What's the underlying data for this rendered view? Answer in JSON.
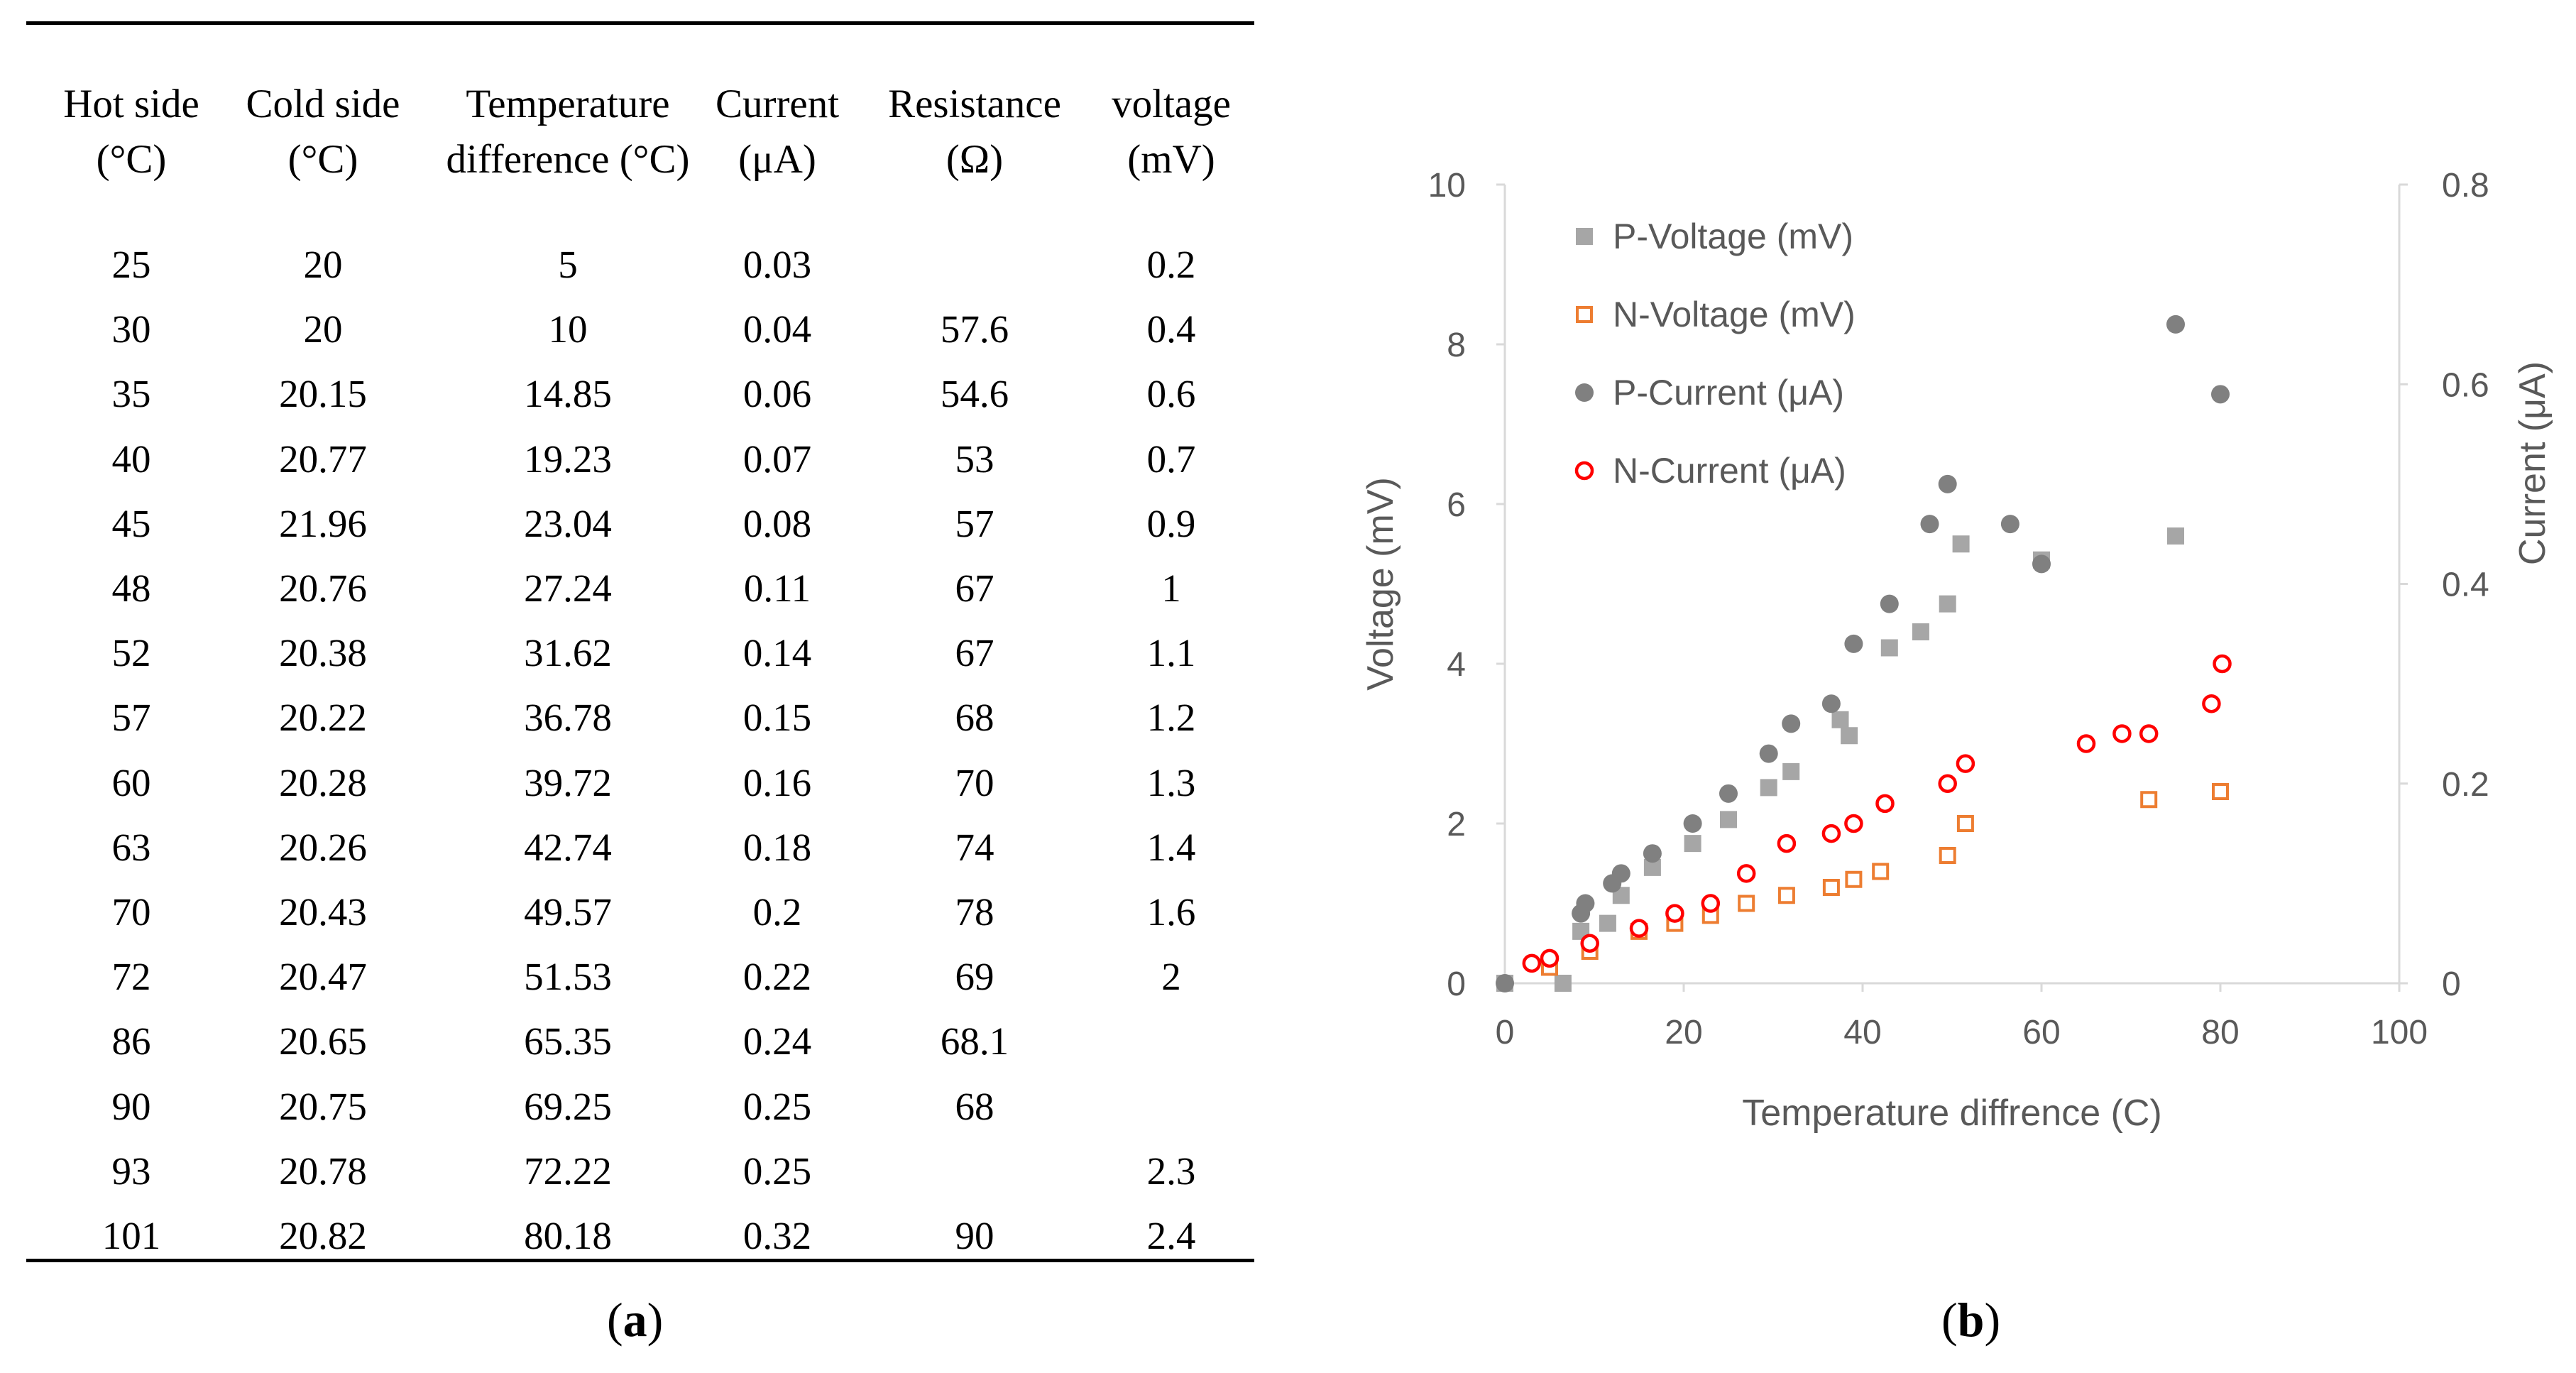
{
  "table": {
    "headers": [
      [
        "Hot side",
        "(°C)"
      ],
      [
        "Cold side",
        "(°C)"
      ],
      [
        "Temperature",
        "difference (°C)"
      ],
      [
        "Current",
        "(μA)"
      ],
      [
        "Resistance",
        "(Ω)"
      ],
      [
        "voltage",
        "(mV)"
      ]
    ],
    "rows": [
      [
        "25",
        "20",
        "5",
        "0.03",
        "",
        "0.2"
      ],
      [
        "30",
        "20",
        "10",
        "0.04",
        "57.6",
        "0.4"
      ],
      [
        "35",
        "20.15",
        "14.85",
        "0.06",
        "54.6",
        "0.6"
      ],
      [
        "40",
        "20.77",
        "19.23",
        "0.07",
        "53",
        "0.7"
      ],
      [
        "45",
        "21.96",
        "23.04",
        "0.08",
        "57",
        "0.9"
      ],
      [
        "48",
        "20.76",
        "27.24",
        "0.11",
        "67",
        "1"
      ],
      [
        "52",
        "20.38",
        "31.62",
        "0.14",
        "67",
        "1.1"
      ],
      [
        "57",
        "20.22",
        "36.78",
        "0.15",
        "68",
        "1.2"
      ],
      [
        "60",
        "20.28",
        "39.72",
        "0.16",
        "70",
        "1.3"
      ],
      [
        "63",
        "20.26",
        "42.74",
        "0.18",
        "74",
        "1.4"
      ],
      [
        "70",
        "20.43",
        "49.57",
        "0.2",
        "78",
        "1.6"
      ],
      [
        "72",
        "20.47",
        "51.53",
        "0.22",
        "69",
        "2"
      ],
      [
        "86",
        "20.65",
        "65.35",
        "0.24",
        "68.1",
        ""
      ],
      [
        "90",
        "20.75",
        "69.25",
        "0.25",
        "68",
        ""
      ],
      [
        "93",
        "20.78",
        "72.22",
        "0.25",
        "",
        "2.3"
      ],
      [
        "101",
        "20.82",
        "80.18",
        "0.32",
        "90",
        "2.4"
      ]
    ]
  },
  "labels": {
    "a": {
      "open": "(",
      "letter": "a",
      "close": ")"
    },
    "b": {
      "open": "(",
      "letter": "b",
      "close": ")"
    }
  },
  "chart_data": {
    "type": "scatter",
    "title": "",
    "xlabel": "Temperature diffrence (C)",
    "ylabel": "Voltage (mV)",
    "y2label": "Current (μA)",
    "xlim": [
      0,
      100
    ],
    "ylim": [
      0,
      10
    ],
    "y2lim": [
      0,
      0.8
    ],
    "xticks": [
      "0",
      "20",
      "40",
      "60",
      "80",
      "100"
    ],
    "yticks": [
      "0",
      "2",
      "4",
      "6",
      "8",
      "10"
    ],
    "y2ticks": [
      "0",
      "0.2",
      "0.4",
      "0.6",
      "0.8"
    ],
    "grid": false,
    "legend_position": "top-left",
    "series": [
      {
        "name": "P-Voltage (mV)",
        "axis": "left",
        "marker": "filled-square",
        "color": "#a6a6a6",
        "x": [
          0,
          6.5,
          8.5,
          11.5,
          13,
          16.5,
          21,
          25,
          29.5,
          32,
          37.5,
          38.5,
          43,
          46.5,
          49.5,
          51,
          60,
          75
        ],
        "y": [
          0,
          0,
          0.65,
          0.75,
          1.1,
          1.45,
          1.75,
          2.05,
          2.45,
          2.65,
          3.3,
          3.1,
          4.2,
          4.4,
          4.75,
          5.5,
          5.3,
          5.6
        ]
      },
      {
        "name": "N-Voltage (mV)",
        "axis": "left",
        "marker": "open-square",
        "color": "#ed7d31",
        "x": [
          5,
          9.5,
          15,
          19,
          23,
          27,
          31.5,
          36.5,
          39,
          42,
          49.5,
          51.5,
          72,
          80
        ],
        "y": [
          0.2,
          0.4,
          0.65,
          0.75,
          0.85,
          1.0,
          1.1,
          1.2,
          1.3,
          1.4,
          1.6,
          2.0,
          2.3,
          2.4
        ]
      },
      {
        "name": "P-Current (μA)",
        "axis": "right",
        "marker": "filled-circle",
        "color": "#808080",
        "x": [
          0,
          8.5,
          9,
          12,
          13,
          16.5,
          21,
          25,
          29.5,
          32,
          36.5,
          39,
          43,
          47.5,
          49.5,
          56.5,
          60,
          75,
          80
        ],
        "y": [
          0,
          0.07,
          0.08,
          0.1,
          0.11,
          0.13,
          0.16,
          0.19,
          0.23,
          0.26,
          0.28,
          0.34,
          0.38,
          0.46,
          0.5,
          0.46,
          0.42,
          0.66,
          0.59
        ]
      },
      {
        "name": "N-Current (μA)",
        "axis": "right",
        "marker": "open-circle",
        "color": "#ff0000",
        "x": [
          3,
          5,
          9.5,
          15,
          19,
          23,
          27,
          31.5,
          36.5,
          39,
          42.5,
          49.5,
          51.5,
          65,
          69,
          72,
          79,
          80.2
        ],
        "y": [
          0.02,
          0.025,
          0.04,
          0.055,
          0.07,
          0.08,
          0.11,
          0.14,
          0.15,
          0.16,
          0.18,
          0.2,
          0.22,
          0.24,
          0.25,
          0.25,
          0.28,
          0.32
        ]
      }
    ]
  }
}
